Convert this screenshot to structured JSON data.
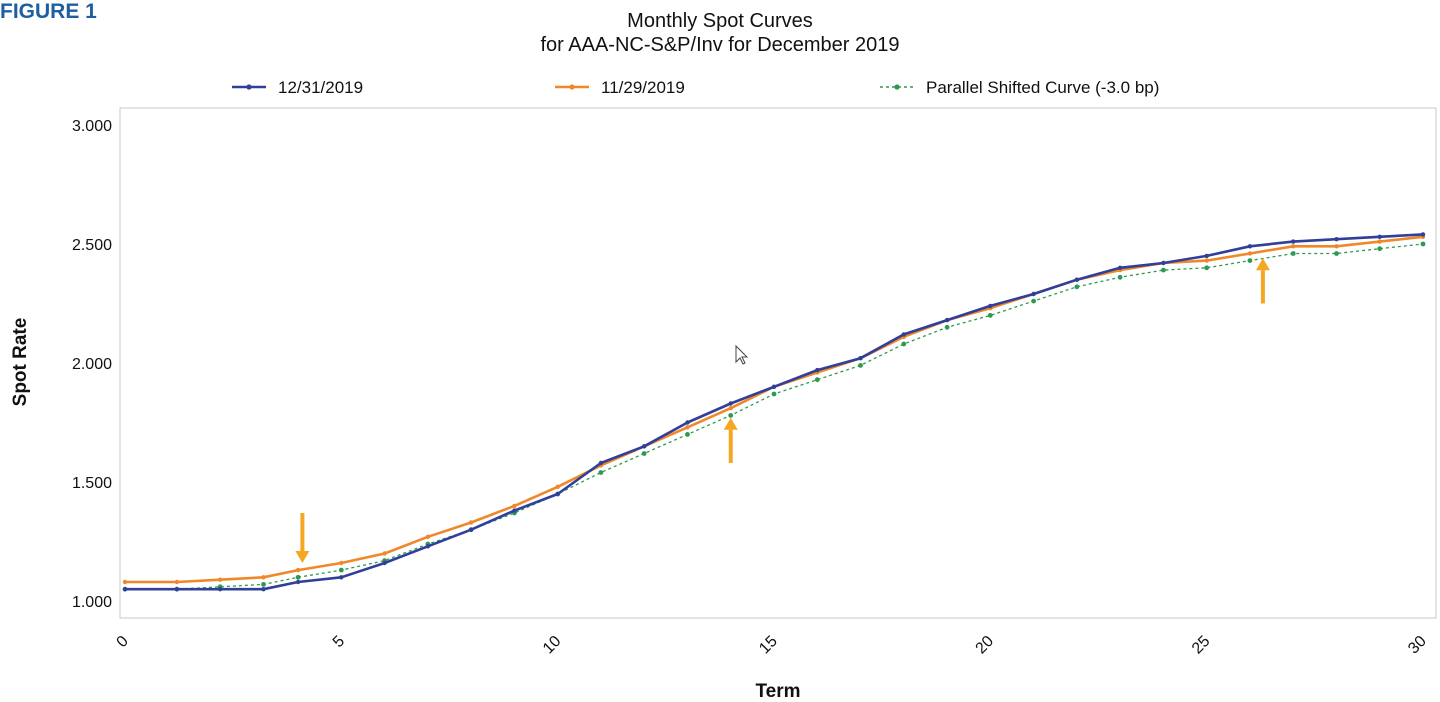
{
  "figure_label": "FIGURE 1",
  "chart_data": {
    "type": "line",
    "title": "Monthly Spot Curves",
    "subtitle": "for AAA-NC-S&P/Inv for December 2019",
    "xlabel": "Term",
    "ylabel": "Spot Rate",
    "xlim": [
      0,
      30
    ],
    "ylim": [
      0.95,
      3.05
    ],
    "x_ticks": [
      "0",
      "5",
      "10",
      "15",
      "20",
      "25",
      "30"
    ],
    "y_ticks": [
      "1.000",
      "1.500",
      "2.000",
      "2.500",
      "3.000"
    ],
    "grid": false,
    "legend_position": "top",
    "x": [
      0,
      1.2,
      2.2,
      3.2,
      4,
      5,
      6,
      7,
      8,
      9,
      10,
      11,
      12,
      13,
      14,
      15,
      16,
      17,
      18,
      19,
      20,
      21,
      22,
      23,
      24,
      25,
      26,
      27,
      28,
      29,
      30
    ],
    "series": [
      {
        "name": "12/31/2019",
        "color": "#2f3f9a",
        "style": "solid",
        "values": [
          1.05,
          1.05,
          1.05,
          1.05,
          1.08,
          1.1,
          1.16,
          1.23,
          1.3,
          1.38,
          1.45,
          1.58,
          1.65,
          1.75,
          1.83,
          1.9,
          1.97,
          2.02,
          2.12,
          2.18,
          2.24,
          2.29,
          2.35,
          2.4,
          2.42,
          2.45,
          2.49,
          2.51,
          2.52,
          2.53,
          2.54
        ]
      },
      {
        "name": "11/29/2019",
        "color": "#f0882a",
        "style": "solid",
        "values": [
          1.08,
          1.08,
          1.09,
          1.1,
          1.13,
          1.16,
          1.2,
          1.27,
          1.33,
          1.4,
          1.48,
          1.57,
          1.65,
          1.73,
          1.81,
          1.9,
          1.96,
          2.02,
          2.11,
          2.18,
          2.23,
          2.29,
          2.35,
          2.39,
          2.42,
          2.43,
          2.46,
          2.49,
          2.49,
          2.51,
          2.53
        ]
      },
      {
        "name": "Parallel Shifted Curve (-3.0 bp)",
        "color": "#2e9a4f",
        "style": "dotted",
        "values": [
          1.05,
          1.05,
          1.06,
          1.07,
          1.1,
          1.13,
          1.17,
          1.24,
          1.3,
          1.37,
          1.45,
          1.54,
          1.62,
          1.7,
          1.78,
          1.87,
          1.93,
          1.99,
          2.08,
          2.15,
          2.2,
          2.26,
          2.32,
          2.36,
          2.39,
          2.4,
          2.43,
          2.46,
          2.46,
          2.48,
          2.5
        ]
      }
    ],
    "annotations": [
      {
        "type": "arrow",
        "x": 4.1,
        "y_from": 1.37,
        "y_to": 1.16,
        "direction": "down",
        "color": "#f5a623"
      },
      {
        "type": "arrow",
        "x": 14.0,
        "y_from": 1.58,
        "y_to": 1.77,
        "direction": "up",
        "color": "#f5a623"
      },
      {
        "type": "arrow",
        "x": 26.3,
        "y_from": 2.25,
        "y_to": 2.44,
        "direction": "up",
        "color": "#f5a623"
      }
    ]
  }
}
